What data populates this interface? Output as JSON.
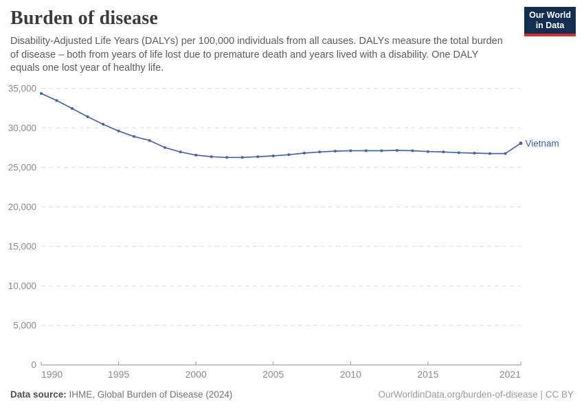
{
  "header": {
    "title": "Burden of disease",
    "subtitle": "Disability-Adjusted Life Years (DALYs) per 100,000 individuals from all causes. DALYs measure the total burden of disease – both from years of life lost due to premature death and years lived with a disability. One DALY equals one lost year of healthy life.",
    "logo_lines": [
      "Our World",
      "in Data"
    ]
  },
  "colors": {
    "line": "#4365a8",
    "series_label": "#3d5fa6",
    "grid": "#dcdcdc",
    "axis_line": "#9a9a9a",
    "tick_text": "#8b8b8b",
    "title_text": "#3b3b3b",
    "subtitle_text": "#5b5b5b",
    "logo_bg": "#142e52",
    "logo_red": "#cf352e"
  },
  "chart_data": {
    "type": "line",
    "title": "Burden of disease",
    "xlabel": "",
    "ylabel": "",
    "grid": "horizontal-dashed",
    "legend_position": "end-of-line",
    "xlim": [
      1990,
      2021
    ],
    "ylim": [
      0,
      35000
    ],
    "x_ticks": [
      1990,
      1995,
      2000,
      2005,
      2010,
      2015,
      2021
    ],
    "x_tick_labels": [
      "1990",
      "1995",
      "2000",
      "2005",
      "2010",
      "2015",
      "2021"
    ],
    "y_ticks": [
      0,
      5000,
      10000,
      15000,
      20000,
      25000,
      30000,
      35000
    ],
    "y_tick_labels": [
      "0",
      "5,000",
      "10,000",
      "15,000",
      "20,000",
      "25,000",
      "30,000",
      "35,000"
    ],
    "x": [
      1990,
      1991,
      1992,
      1993,
      1994,
      1995,
      1996,
      1997,
      1998,
      1999,
      2000,
      2001,
      2002,
      2003,
      2004,
      2005,
      2006,
      2007,
      2008,
      2009,
      2010,
      2011,
      2012,
      2013,
      2014,
      2015,
      2016,
      2017,
      2018,
      2019,
      2020,
      2021
    ],
    "series": [
      {
        "name": "Vietnam",
        "values": [
          34350,
          33450,
          32450,
          31400,
          30450,
          29600,
          28900,
          28400,
          27500,
          26950,
          26550,
          26350,
          26250,
          26250,
          26350,
          26450,
          26600,
          26800,
          26950,
          27050,
          27100,
          27100,
          27100,
          27150,
          27100,
          27000,
          26950,
          26850,
          26800,
          26750,
          26750,
          28050
        ]
      }
    ]
  },
  "footer": {
    "data_source_label": "Data source:",
    "data_source_text": " IHME, Global Burden of Disease (2024)",
    "credit": "OurWorldinData.org/burden-of-disease | CC BY"
  }
}
